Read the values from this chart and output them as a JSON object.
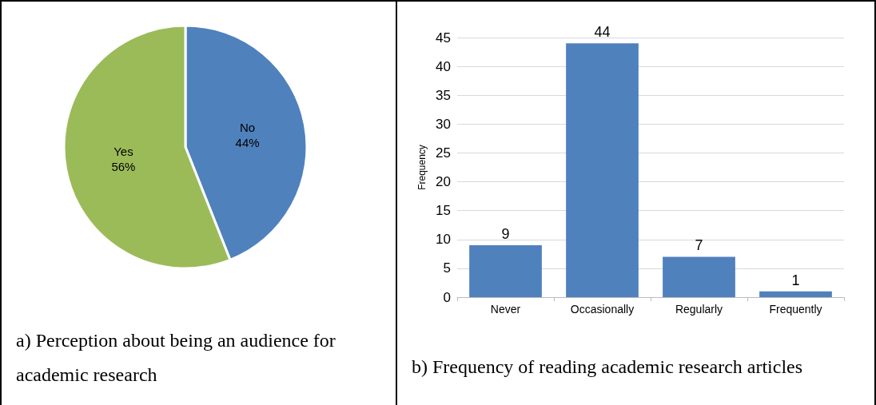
{
  "chart_data": [
    {
      "type": "pie",
      "title": "a) Perception about being an audience for academic research",
      "categories": [
        "No",
        "Yes"
      ],
      "values": [
        44,
        56
      ],
      "colors": [
        "#4f81bd",
        "#9bbb59"
      ],
      "value_labels": [
        "44%",
        "56%"
      ],
      "legend": false
    },
    {
      "type": "bar",
      "title": "b) Frequency of reading academic research articles",
      "ylabel": "Frequency",
      "categories": [
        "Never",
        "Occasionally",
        "Regularly",
        "Frequently"
      ],
      "values": [
        9,
        44,
        7,
        1
      ],
      "color": "#4f81bd",
      "ylim": [
        0,
        45
      ],
      "yticks": [
        0,
        5,
        10,
        15,
        20,
        25,
        30,
        35,
        40,
        45
      ],
      "grid": "y",
      "data_labels": true,
      "legend": false
    }
  ]
}
